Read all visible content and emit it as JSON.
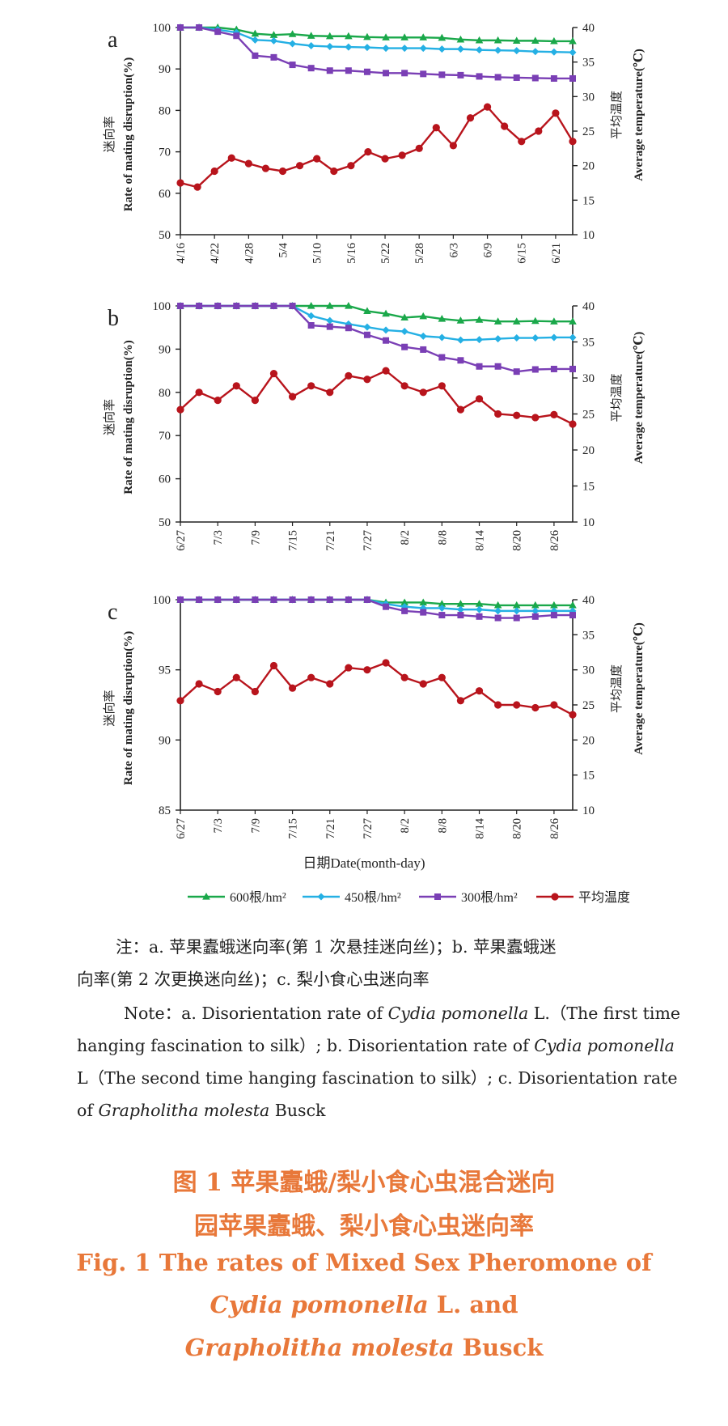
{
  "xaxis_title": "日期Date(month-day)",
  "legend": [
    {
      "label": "600根/hm²",
      "color": "#1aa84a",
      "marker": "triangle"
    },
    {
      "label": "450根/hm²",
      "color": "#25b0e4",
      "marker": "diamond"
    },
    {
      "label": "300根/hm²",
      "color": "#7a3fb5",
      "marker": "square"
    },
    {
      "label": "平均温度",
      "color": "#b8141c",
      "marker": "circle"
    }
  ],
  "colors": {
    "s600": "#1aa84a",
    "s450": "#25b0e4",
    "s300": "#7a3fb5",
    "temp": "#b8141c",
    "caption": "#e8783a"
  },
  "chart_data": [
    {
      "panel": "a",
      "type": "line",
      "ylabel_cn": "迷向率",
      "ylabel": "Rate of mating disruption(%)",
      "y2label_cn": "平均温度",
      "y2label": "Average temperature(℃)",
      "ylim": [
        50,
        100
      ],
      "yticks": [
        50,
        60,
        70,
        80,
        90,
        100
      ],
      "y2lim": [
        10,
        40
      ],
      "y2ticks": [
        10,
        15,
        20,
        25,
        30,
        35,
        40
      ],
      "xticks": [
        "4/16",
        "4/22",
        "4/28",
        "5/4",
        "5/10",
        "5/16",
        "5/22",
        "5/28",
        "6/3",
        "6/9",
        "6/15",
        "6/21"
      ],
      "n_points": 22,
      "series": [
        {
          "name": "600根/hm²",
          "values": [
            100,
            100,
            100,
            99.5,
            98.5,
            98.2,
            98.4,
            98,
            97.9,
            97.9,
            97.7,
            97.6,
            97.6,
            97.6,
            97.5,
            97.1,
            96.9,
            96.9,
            96.8,
            96.8,
            96.7,
            96.7
          ]
        },
        {
          "name": "450根/hm²",
          "values": [
            100,
            100,
            99.5,
            98.8,
            97,
            96.8,
            96.1,
            95.6,
            95.4,
            95.3,
            95.2,
            95,
            95,
            95,
            94.8,
            94.8,
            94.6,
            94.5,
            94.4,
            94.2,
            94.1,
            94
          ]
        },
        {
          "name": "300根/hm²",
          "values": [
            100,
            100,
            99,
            98,
            93.2,
            92.8,
            91,
            90.2,
            89.6,
            89.6,
            89.3,
            89,
            89,
            88.8,
            88.6,
            88.5,
            88.2,
            88,
            87.9,
            87.8,
            87.7,
            87.7
          ]
        },
        {
          "name": "平均温度",
          "axis": "right",
          "values": [
            17.5,
            16.9,
            19.2,
            21.1,
            20.3,
            19.6,
            19.2,
            20,
            21,
            19.2,
            20,
            22,
            21,
            21.5,
            22.5,
            25.5,
            22.9,
            26.9,
            28.5,
            25.7,
            23.5,
            25,
            27.6,
            23.5
          ]
        }
      ],
      "temp_n_points": 24
    },
    {
      "panel": "b",
      "type": "line",
      "ylabel_cn": "迷向率",
      "ylabel": "Rate of mating disruption(%)",
      "y2label_cn": "平均温度",
      "y2label": "Average temperature(℃)",
      "ylim": [
        50,
        100
      ],
      "yticks": [
        50,
        60,
        70,
        80,
        90,
        100
      ],
      "y2lim": [
        10,
        40
      ],
      "y2ticks": [
        10,
        15,
        20,
        25,
        30,
        35,
        40
      ],
      "xticks": [
        "6/27",
        "7/3",
        "7/9",
        "7/15",
        "7/21",
        "7/27",
        "8/2",
        "8/8",
        "8/14",
        "8/20",
        "8/26"
      ],
      "n_points": 22,
      "series": [
        {
          "name": "600根/hm²",
          "values": [
            100,
            100,
            100,
            100,
            100,
            100,
            100,
            100,
            100,
            100,
            98.8,
            98.2,
            97.3,
            97.6,
            97,
            96.6,
            96.8,
            96.4,
            96.4,
            96.5,
            96.4,
            96.4
          ]
        },
        {
          "name": "450根/hm²",
          "values": [
            100,
            100,
            100,
            100,
            100,
            100,
            100,
            97.7,
            96.6,
            95.8,
            95.1,
            94.4,
            94.1,
            93,
            92.7,
            92.1,
            92.2,
            92.4,
            92.6,
            92.6,
            92.7,
            92.7
          ]
        },
        {
          "name": "300根/hm²",
          "values": [
            100,
            100,
            100,
            100,
            100,
            100,
            100,
            95.5,
            95.2,
            94.9,
            93.3,
            92,
            90.5,
            89.9,
            88.1,
            87.4,
            86,
            86,
            84.8,
            85.3,
            85.4,
            85.4
          ]
        },
        {
          "name": "平均温度",
          "axis": "right",
          "values": [
            25.6,
            28,
            26.9,
            28.9,
            26.9,
            30.6,
            27.4,
            28.9,
            28,
            30.3,
            29.8,
            31,
            28.9,
            28,
            28.9,
            25.6,
            27.1,
            25,
            24.8,
            24.5,
            24.9,
            23.6
          ]
        }
      ],
      "temp_n_points": 22
    },
    {
      "panel": "c",
      "type": "line",
      "ylabel_cn": "迷向率",
      "ylabel": "Rate of mating disruption(%)",
      "y2label_cn": "平均温度",
      "y2label": "Average temperature(℃)",
      "ylim": [
        85,
        100
      ],
      "yticks": [
        85,
        90,
        95,
        100
      ],
      "y2lim": [
        10,
        40
      ],
      "y2ticks": [
        10,
        15,
        20,
        25,
        30,
        35,
        40
      ],
      "xticks": [
        "6/27",
        "7/3",
        "7/9",
        "7/15",
        "7/21",
        "7/27",
        "8/2",
        "8/8",
        "8/14",
        "8/20",
        "8/26"
      ],
      "n_points": 22,
      "series": [
        {
          "name": "600根/hm²",
          "values": [
            100,
            100,
            100,
            100,
            100,
            100,
            100,
            100,
            100,
            100,
            100,
            99.8,
            99.8,
            99.8,
            99.7,
            99.7,
            99.7,
            99.6,
            99.6,
            99.6,
            99.6,
            99.6
          ]
        },
        {
          "name": "450根/hm²",
          "values": [
            100,
            100,
            100,
            100,
            100,
            100,
            100,
            100,
            100,
            100,
            100,
            99.7,
            99.5,
            99.4,
            99.4,
            99.3,
            99.3,
            99.2,
            99.2,
            99.2,
            99.2,
            99.2
          ]
        },
        {
          "name": "300根/hm²",
          "values": [
            100,
            100,
            100,
            100,
            100,
            100,
            100,
            100,
            100,
            100,
            100,
            99.5,
            99.2,
            99.1,
            98.9,
            98.9,
            98.8,
            98.7,
            98.7,
            98.8,
            98.9,
            98.9
          ]
        },
        {
          "name": "平均温度",
          "axis": "right",
          "values": [
            25.6,
            28,
            26.9,
            28.9,
            26.9,
            30.6,
            27.4,
            28.9,
            28,
            30.3,
            30,
            31,
            28.9,
            28,
            28.9,
            25.6,
            27,
            25,
            25,
            24.6,
            25,
            23.6
          ]
        }
      ],
      "temp_n_points": 22
    }
  ],
  "note_cn_1": "注：a. 苹果蠹蛾迷向率(第 1 次悬挂迷向丝)；b. 苹果蠹蛾迷",
  "note_cn_2": "向率(第 2 次更换迷向丝)；c. 梨小食心虫迷向率",
  "note_en_a_pre": "Note：a. Disorientation rate of ",
  "note_en_species1": "Cydia pomonella",
  "note_en_a_post": " L.（The first time",
  "note_en_line2_pre": "hanging fascination to silk）; b. Disorientation rate of ",
  "note_en_line3": "L（The second time hanging fascination to silk）; c. Disorientation rate",
  "note_en_line4_pre": "of ",
  "note_en_species2": "Grapholitha molesta",
  "note_en_line4_post": " Busck",
  "caption_cn_1": "图 1    苹果蠹蛾/梨小食心虫混合迷向",
  "caption_cn_2": "园苹果蠹蛾、梨小食心虫迷向率",
  "caption_en_1": "Fig. 1    The rates of Mixed Sex Pheromone of",
  "caption_en_2_italic": "Cydia pomonella",
  "caption_en_2_rest": " L. and",
  "caption_en_3_italic": "Grapholitha molesta",
  "caption_en_3_rest": " Busck"
}
